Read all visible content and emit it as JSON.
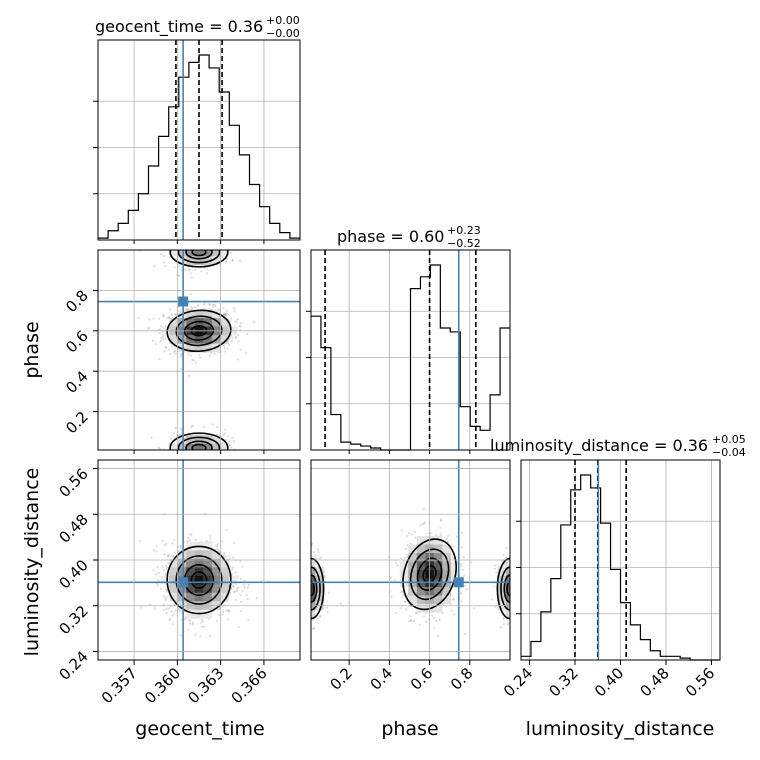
{
  "chart_data": {
    "type": "corner",
    "truth_color": "#4682b4",
    "truth": {
      "geocent_time": 0.3604,
      "phase": 0.745,
      "luminosity_distance": 0.361
    },
    "parameters": [
      {
        "name": "geocent_time",
        "label": "geocent_time",
        "range": [
          0.3545,
          0.3685
        ],
        "ticks": [
          0.357,
          0.36,
          0.363,
          0.366
        ],
        "tick_labels": [
          "0.357",
          "0.360",
          "0.363",
          "0.366"
        ],
        "quantiles": [
          0.3599,
          0.3615,
          0.3631
        ],
        "title": {
          "base": "geocent_time = 0.36",
          "plus": "+0.00",
          "minus": "−0.00"
        },
        "hist": {
          "edges_start": 0.3545,
          "bin_width": 0.0007,
          "counts": [
            0.01,
            0.05,
            0.09,
            0.16,
            0.25,
            0.4,
            0.56,
            0.72,
            0.88,
            0.96,
            1.0,
            0.93,
            0.8,
            0.62,
            0.46,
            0.3,
            0.18,
            0.09,
            0.04,
            0.01
          ]
        }
      },
      {
        "name": "phase",
        "label": "phase",
        "range": [
          0.01,
          1.0
        ],
        "ticks": [
          0.2,
          0.4,
          0.6,
          0.8
        ],
        "tick_labels": [
          "0.2",
          "0.4",
          "0.6",
          "0.8"
        ],
        "quantiles": [
          0.08,
          0.6,
          0.83
        ],
        "title": {
          "base": "phase = 0.60",
          "plus": "+0.23",
          "minus": "−0.52"
        },
        "hist": {
          "edges_start": 0.01,
          "bin_width": 0.0495,
          "counts": [
            0.68,
            0.52,
            0.18,
            0.04,
            0.03,
            0.02,
            0.01,
            0.0,
            0.0,
            0.0,
            0.82,
            0.88,
            0.94,
            0.62,
            0.6,
            0.22,
            0.12,
            0.1,
            0.28,
            0.62
          ]
        }
      },
      {
        "name": "luminosity_distance",
        "label": "luminosity_distance",
        "range": [
          0.225,
          0.575
        ],
        "ticks": [
          0.24,
          0.32,
          0.4,
          0.48,
          0.56
        ],
        "tick_labels": [
          "0.24",
          "0.32",
          "0.40",
          "0.48",
          "0.56"
        ],
        "quantiles": [
          0.32,
          0.36,
          0.41
        ],
        "title": {
          "base": "luminosity_distance = 0.36",
          "plus": "+0.05",
          "minus": "−0.04"
        },
        "hist": {
          "edges_start": 0.225,
          "bin_width": 0.0175,
          "counts": [
            0.02,
            0.1,
            0.26,
            0.44,
            0.73,
            0.92,
            1.0,
            0.93,
            0.74,
            0.49,
            0.31,
            0.19,
            0.11,
            0.05,
            0.02,
            0.02,
            0.01,
            0.0,
            0.0,
            0.0
          ]
        }
      }
    ],
    "pairs": [
      {
        "x": "geocent_time",
        "y": "phase"
      },
      {
        "x": "geocent_time",
        "y": "luminosity_distance"
      },
      {
        "x": "phase",
        "y": "luminosity_distance"
      }
    ]
  }
}
